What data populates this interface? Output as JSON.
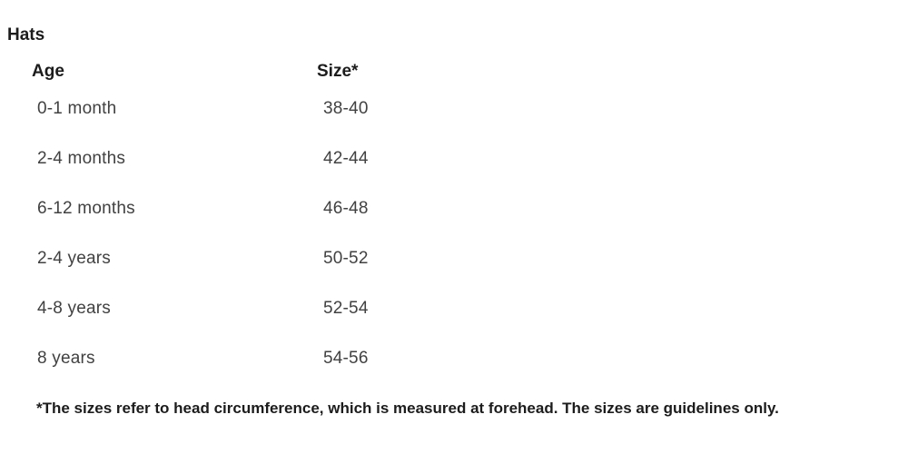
{
  "page": {
    "title": "Hats",
    "footnote": "*The sizes refer to head circumference, which is measured at forehead. The sizes are guidelines only."
  },
  "table": {
    "headers": {
      "age": "Age",
      "size": "Size*"
    },
    "rows": [
      {
        "age": "0-1 month",
        "size": "38-40"
      },
      {
        "age": "2-4 months",
        "size": "42-44"
      },
      {
        "age": "6-12 months",
        "size": "46-48"
      },
      {
        "age": "2-4 years",
        "size": "50-52"
      },
      {
        "age": "4-8 years",
        "size": "52-54"
      },
      {
        "age": "8 years",
        "size": "54-56"
      }
    ]
  },
  "colors": {
    "background": "#ffffff",
    "heading_text": "#1c1c1c",
    "body_text": "#414141"
  }
}
